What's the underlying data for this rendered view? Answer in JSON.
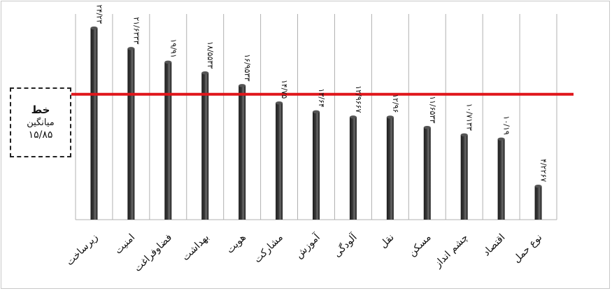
{
  "chart_data": {
    "type": "bar",
    "title": "",
    "xlabel": "",
    "ylabel": "",
    "categories": [
      "زیرساخت",
      "امنیت",
      "فضاوفراغت",
      "بهداشت",
      "هویت",
      "مشارکت",
      "آموزش",
      "آلودگی",
      "نقل",
      "مسکن",
      "چشم انداز",
      "اقتصاد",
      "نوع حمل"
    ],
    "values": [
      24.23,
      21.6333,
      19.91,
      18.5533,
      16.9533,
      14.75,
      13.64,
      12.9667,
      12.96,
      11.6533,
      10.7133,
      10.19,
      4.2267
    ],
    "data_labels": [
      "۲۴/۲۳",
      "۲۱/۶۳۳۳",
      "۱۹/۹۱",
      "۱۸/۵۵۳۳",
      "۱۶/۹۵۳۳",
      "۱۴/۷۵",
      "۱۳/۶۴",
      "۱۲/۹۶۶۷",
      "۱۲/۹۶",
      "۱۱/۶۵۳۳",
      "۱۰/۷۱۳۳",
      "۱۰/۱۹",
      "۴/۲۲۶۷"
    ],
    "ylim": [
      0,
      26
    ],
    "grid": "vertical",
    "average_line": {
      "value": 15.85,
      "color": "#e0161b"
    },
    "bar_color": "#3a3a3a"
  },
  "average_box": {
    "line1": "خط",
    "line2": "میانگین",
    "line3": "۱۵/۸۵"
  }
}
